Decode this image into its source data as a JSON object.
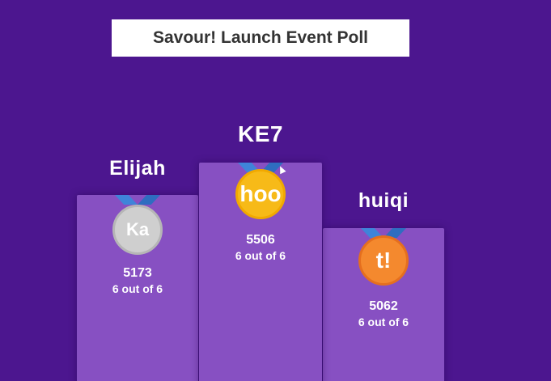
{
  "header": {
    "title": "Savour! Launch Event Poll"
  },
  "podium": [
    {
      "place": "second",
      "name": "Elijah",
      "medal_text": "Ka",
      "medal_icon": "silver-medal-icon",
      "score": "5173",
      "correct": "6 out of 6"
    },
    {
      "place": "first",
      "name": "KE7",
      "medal_text": "hoo",
      "medal_icon": "gold-medal-icon",
      "score": "5506",
      "correct": "6 out of 6"
    },
    {
      "place": "third",
      "name": "huiqi",
      "medal_text": "t!",
      "medal_icon": "bronze-medal-icon",
      "score": "5062",
      "correct": "6 out of 6"
    }
  ],
  "colors": {
    "background": "#4c168f",
    "podium": "#8750c2",
    "ribbon": "#3f84d9",
    "silver": "#cfcfcf",
    "gold": "#f7ba18",
    "bronze": "#f4892e"
  }
}
